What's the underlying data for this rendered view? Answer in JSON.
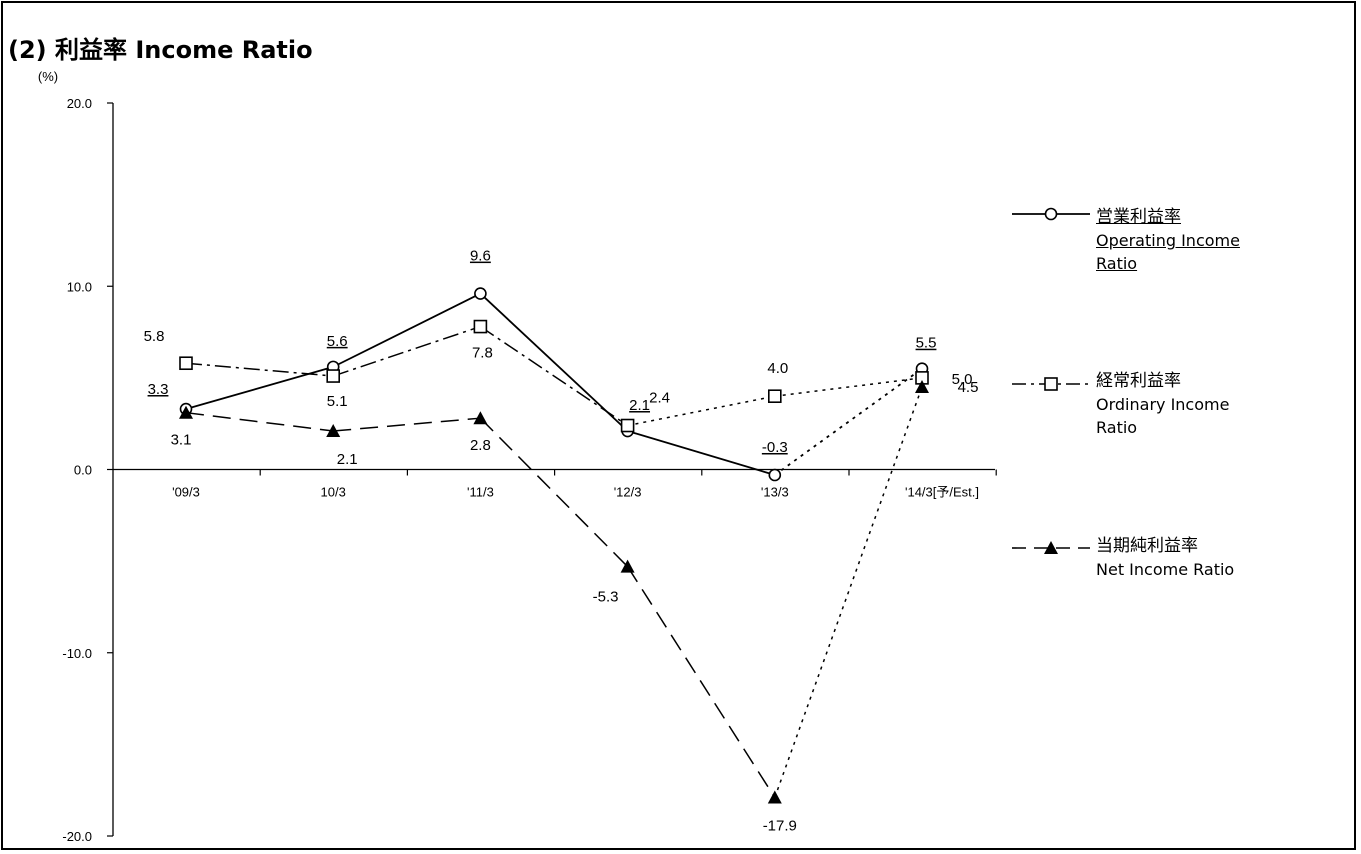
{
  "title": "(2) 利益率 Income Ratio",
  "chart_data": {
    "type": "line",
    "title": "(2) 利益率 Income Ratio",
    "ylabel": "(%)",
    "xlabel": "",
    "ylim": [
      -20,
      20
    ],
    "yticks": [
      "20.0",
      "10.0",
      "0.0",
      "-10.0",
      "-20.0"
    ],
    "ytick_values": [
      20,
      10,
      0,
      -10,
      -20
    ],
    "categories": [
      "'09/3",
      "10/3",
      "'11/3",
      "'12/3",
      "'13/3",
      "'14/3[予/Est.]"
    ],
    "grid": false,
    "legend_position": "right",
    "series": [
      {
        "name": "営業利益率 Operating Income Ratio",
        "name_ja": "営業利益率",
        "name_en": "Operating Income Ratio",
        "marker": "open-circle",
        "color": "#000000",
        "values": [
          3.3,
          5.6,
          9.6,
          2.1,
          -0.3,
          5.5
        ],
        "labels": [
          "3.3",
          "5.6",
          "9.6",
          "2.1",
          "-0.3",
          "5.5"
        ],
        "underlined": true
      },
      {
        "name": "経常利益率 Ordinary Income Ratio",
        "name_ja": "経常利益率",
        "name_en": "Ordinary Income Ratio",
        "marker": "open-square",
        "color": "#000000",
        "values": [
          5.8,
          5.1,
          7.8,
          2.4,
          4.0,
          5.0
        ],
        "labels": [
          "5.8",
          "5.1",
          "7.8",
          "2.4",
          "4.0",
          "5.0"
        ],
        "underlined": false
      },
      {
        "name": "当期純利益率 Net Income Ratio",
        "name_ja": "当期純利益率",
        "name_en": "Net Income Ratio",
        "marker": "filled-triangle",
        "color": "#000000",
        "values": [
          3.1,
          2.1,
          2.8,
          -5.3,
          -17.9,
          4.5
        ],
        "labels": [
          "3.1",
          "2.1",
          "2.8",
          "-5.3",
          "-17.9",
          "4.5"
        ],
        "underlined": false
      }
    ]
  }
}
